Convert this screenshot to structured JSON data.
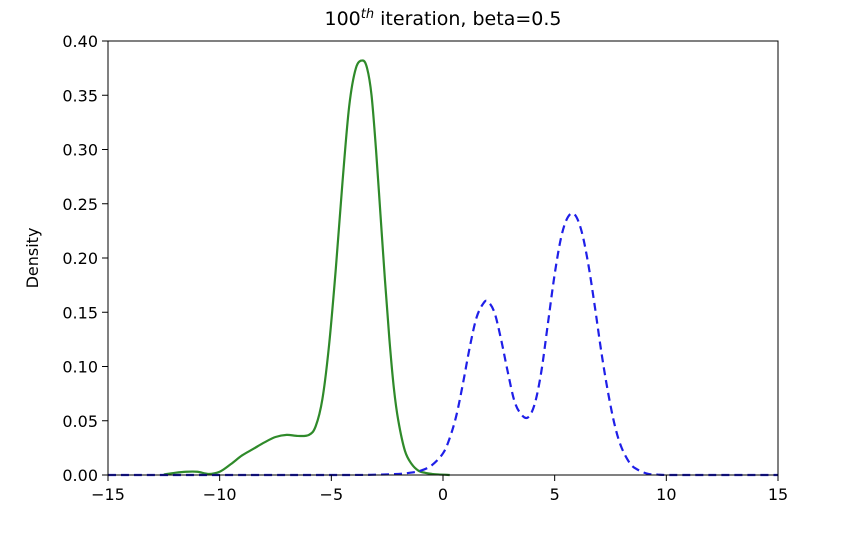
{
  "chart_data": {
    "type": "line",
    "title": {
      "prefix": "100",
      "superscript": "th",
      "suffix": " iteration, beta=0.5"
    },
    "xlabel": "",
    "ylabel": "Density",
    "xlim": [
      -15,
      15
    ],
    "ylim": [
      0,
      0.4
    ],
    "xticks": [
      {
        "value": -15,
        "label": "−15"
      },
      {
        "value": -10,
        "label": "−10"
      },
      {
        "value": -5,
        "label": "−5"
      },
      {
        "value": 0,
        "label": "0"
      },
      {
        "value": 5,
        "label": "5"
      },
      {
        "value": 10,
        "label": "10"
      },
      {
        "value": 15,
        "label": "15"
      }
    ],
    "yticks": [
      {
        "value": 0.0,
        "label": "0.00"
      },
      {
        "value": 0.05,
        "label": "0.05"
      },
      {
        "value": 0.1,
        "label": "0.10"
      },
      {
        "value": 0.15,
        "label": "0.15"
      },
      {
        "value": 0.2,
        "label": "0.20"
      },
      {
        "value": 0.25,
        "label": "0.25"
      },
      {
        "value": 0.3,
        "label": "0.30"
      },
      {
        "value": 0.35,
        "label": "0.35"
      },
      {
        "value": 0.4,
        "label": "0.40"
      }
    ],
    "grid": false,
    "legend": "none",
    "series": [
      {
        "color": "#2f8a2a",
        "linestyle": "solid",
        "x": [
          -12.5,
          -12.0,
          -11.5,
          -11.0,
          -10.5,
          -10.0,
          -9.5,
          -9.0,
          -8.5,
          -8.0,
          -7.5,
          -7.0,
          -6.5,
          -6.0,
          -5.7,
          -5.4,
          -5.1,
          -4.8,
          -4.5,
          -4.2,
          -3.9,
          -3.6,
          -3.4,
          -3.2,
          -3.0,
          -2.8,
          -2.6,
          -2.4,
          -2.2,
          -2.0,
          -1.7,
          -1.4,
          -1.1,
          -0.8,
          -0.5,
          -0.2,
          0.3
        ],
        "y": [
          0.0005,
          0.002,
          0.003,
          0.003,
          0.001,
          0.003,
          0.01,
          0.018,
          0.024,
          0.03,
          0.035,
          0.037,
          0.036,
          0.037,
          0.045,
          0.07,
          0.12,
          0.19,
          0.27,
          0.34,
          0.375,
          0.382,
          0.375,
          0.35,
          0.3,
          0.24,
          0.18,
          0.125,
          0.08,
          0.05,
          0.022,
          0.01,
          0.004,
          0.002,
          0.001,
          0.0005,
          0.0
        ]
      },
      {
        "color": "#1f1fe8",
        "linestyle": "dashed",
        "x": [
          -15.0,
          -5.0,
          -3.0,
          -2.0,
          -1.5,
          -1.0,
          -0.5,
          0.0,
          0.3,
          0.6,
          0.9,
          1.2,
          1.5,
          1.8,
          2.0,
          2.3,
          2.6,
          2.9,
          3.2,
          3.5,
          3.8,
          4.1,
          4.4,
          4.7,
          5.0,
          5.3,
          5.6,
          5.9,
          6.2,
          6.5,
          6.8,
          7.1,
          7.4,
          7.7,
          8.0,
          8.4,
          8.8,
          9.2,
          9.6,
          10.0,
          11.0,
          15.0
        ],
        "y": [
          0.0,
          0.0,
          0.0003,
          0.001,
          0.002,
          0.004,
          0.009,
          0.02,
          0.034,
          0.055,
          0.085,
          0.118,
          0.145,
          0.158,
          0.16,
          0.15,
          0.125,
          0.095,
          0.068,
          0.056,
          0.053,
          0.065,
          0.095,
          0.14,
          0.185,
          0.22,
          0.238,
          0.24,
          0.225,
          0.195,
          0.155,
          0.112,
          0.075,
          0.045,
          0.025,
          0.01,
          0.004,
          0.001,
          0.0004,
          0.0,
          0.0,
          0.0
        ]
      }
    ]
  }
}
